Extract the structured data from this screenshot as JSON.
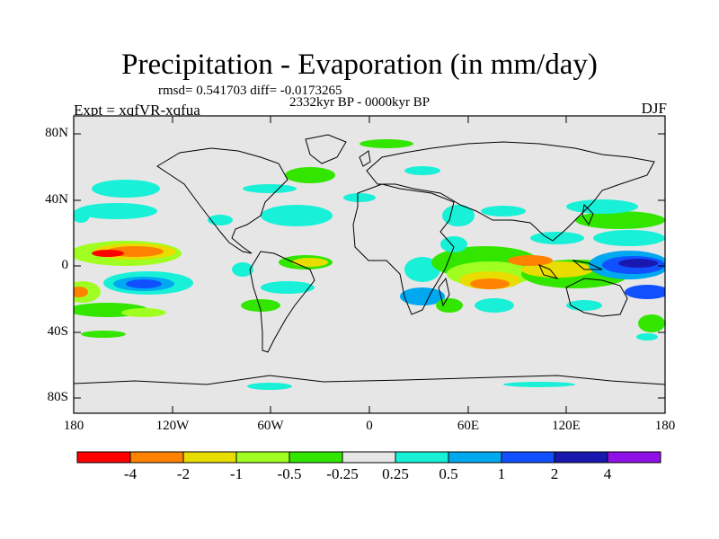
{
  "title": "Precipitation - Evaporation (in mm/day)",
  "stats": "rmsd= 0.541703 diff= -0.0173265",
  "period": "2332kyr BP - 0000kyr BP",
  "experiment": "Expt = xqfVR-xqfua",
  "season": "DJF",
  "latitude_labels": [
    "80N",
    "40N",
    "0",
    "40S",
    "80S"
  ],
  "longitude_labels": [
    "180",
    "120W",
    "60W",
    "0",
    "60E",
    "120E",
    "180"
  ],
  "colorbar": {
    "colors": [
      "#ff0000",
      "#ff8200",
      "#e8dc00",
      "#a0ff20",
      "#33e600",
      "#e6e6e6",
      "#18f0d8",
      "#00a8f0",
      "#1050ff",
      "#1818b0",
      "#9010e8"
    ],
    "labels": [
      "-4",
      "-2",
      "-1",
      "-0.5",
      "-0.25",
      "0.25",
      "0.5",
      "1",
      "2",
      "4"
    ]
  }
}
